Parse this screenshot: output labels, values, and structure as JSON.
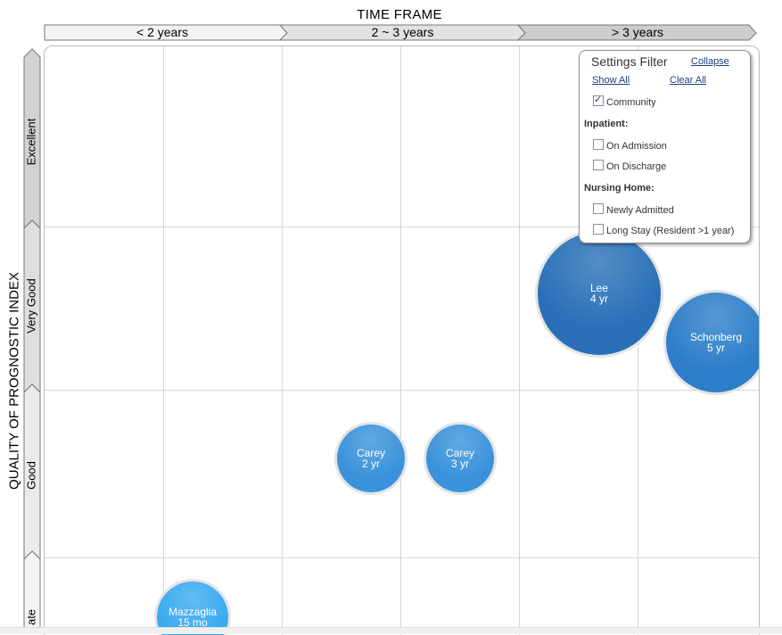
{
  "axes": {
    "x_title": "TIME FRAME",
    "y_title": "QUALITY OF PROGNOSTIC INDEX"
  },
  "time_frames": [
    "< 2 years",
    "2 ~ 3 years",
    "> 3 years"
  ],
  "quality_levels": [
    "Excellent",
    "Very Good",
    "Good",
    "ate"
  ],
  "bubbles": [
    {
      "name": "Lee",
      "value": "4 yr",
      "color": "#2a70b8"
    },
    {
      "name": "Schonberg",
      "value": "5 yr",
      "color": "#2d7ec9"
    },
    {
      "name": "Carey",
      "value": "2 yr",
      "color": "#3a93da"
    },
    {
      "name": "Carey",
      "value": "3 yr",
      "color": "#3a93da"
    },
    {
      "name": "Mazzaglia",
      "value": "15 mo",
      "color": "#3aaaf0"
    }
  ],
  "filter": {
    "title": "Settings Filter",
    "collapse": "Collapse",
    "show_all": "Show All",
    "clear_all": "Clear All",
    "community": {
      "label": "Community",
      "checked": true
    },
    "inpatient_title": "Inpatient:",
    "on_admission": {
      "label": "On Admission",
      "checked": false
    },
    "on_discharge": {
      "label": "On Discharge",
      "checked": false
    },
    "nursing_title": "Nursing Home:",
    "newly_admitted": {
      "label": "Newly Admitted",
      "checked": false
    },
    "long_stay": {
      "label": "Long Stay (Resident >1 year)",
      "checked": false
    }
  }
}
